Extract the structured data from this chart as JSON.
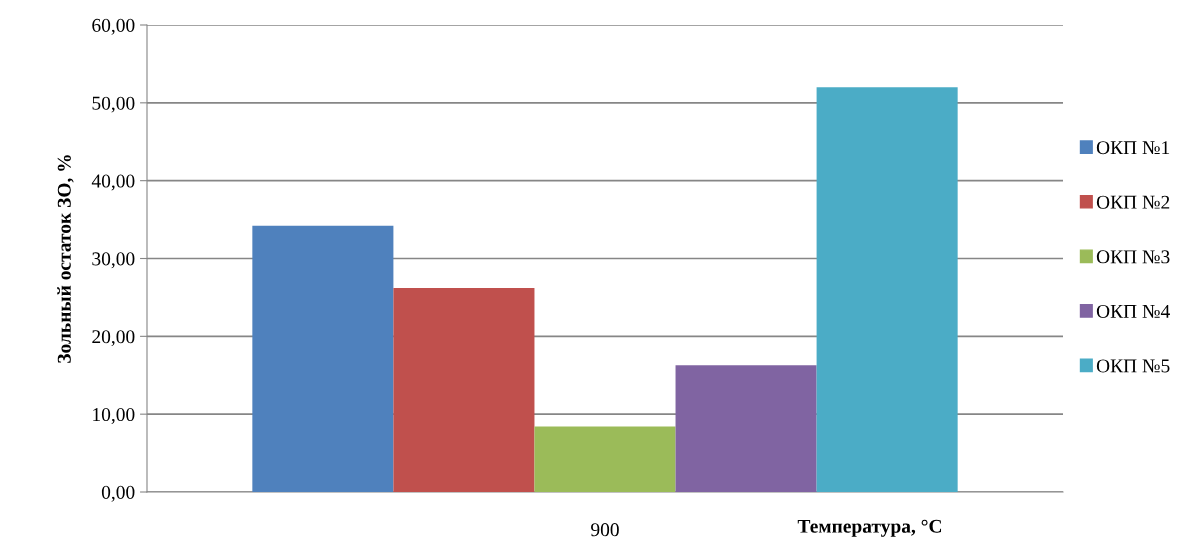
{
  "chart_data": {
    "type": "bar",
    "xlabel": "Температура, °C",
    "ylabel": "Зольный остаток ЗО, %",
    "categories": [
      "900"
    ],
    "series": [
      {
        "name": "ОКП №1",
        "color": "#4f81bd",
        "values": [
          34.2
        ]
      },
      {
        "name": "ОКП №2",
        "color": "#c0504d",
        "values": [
          26.2
        ]
      },
      {
        "name": "ОКП №3",
        "color": "#9bbb59",
        "values": [
          8.4
        ]
      },
      {
        "name": "ОКП №4",
        "color": "#8064a2",
        "values": [
          16.3
        ]
      },
      {
        "name": "ОКП №5",
        "color": "#4bacc6",
        "values": [
          52.0
        ]
      }
    ],
    "ylim": [
      0,
      60
    ],
    "yticks": [
      {
        "value": 0,
        "label": "0,00"
      },
      {
        "value": 10,
        "label": "10,00"
      },
      {
        "value": 20,
        "label": "20,00"
      },
      {
        "value": 30,
        "label": "30,00"
      },
      {
        "value": 40,
        "label": "40,00"
      },
      {
        "value": 50,
        "label": "50,00"
      },
      {
        "value": 60,
        "label": "60,00"
      }
    ],
    "grid": "y",
    "legend": "right"
  }
}
